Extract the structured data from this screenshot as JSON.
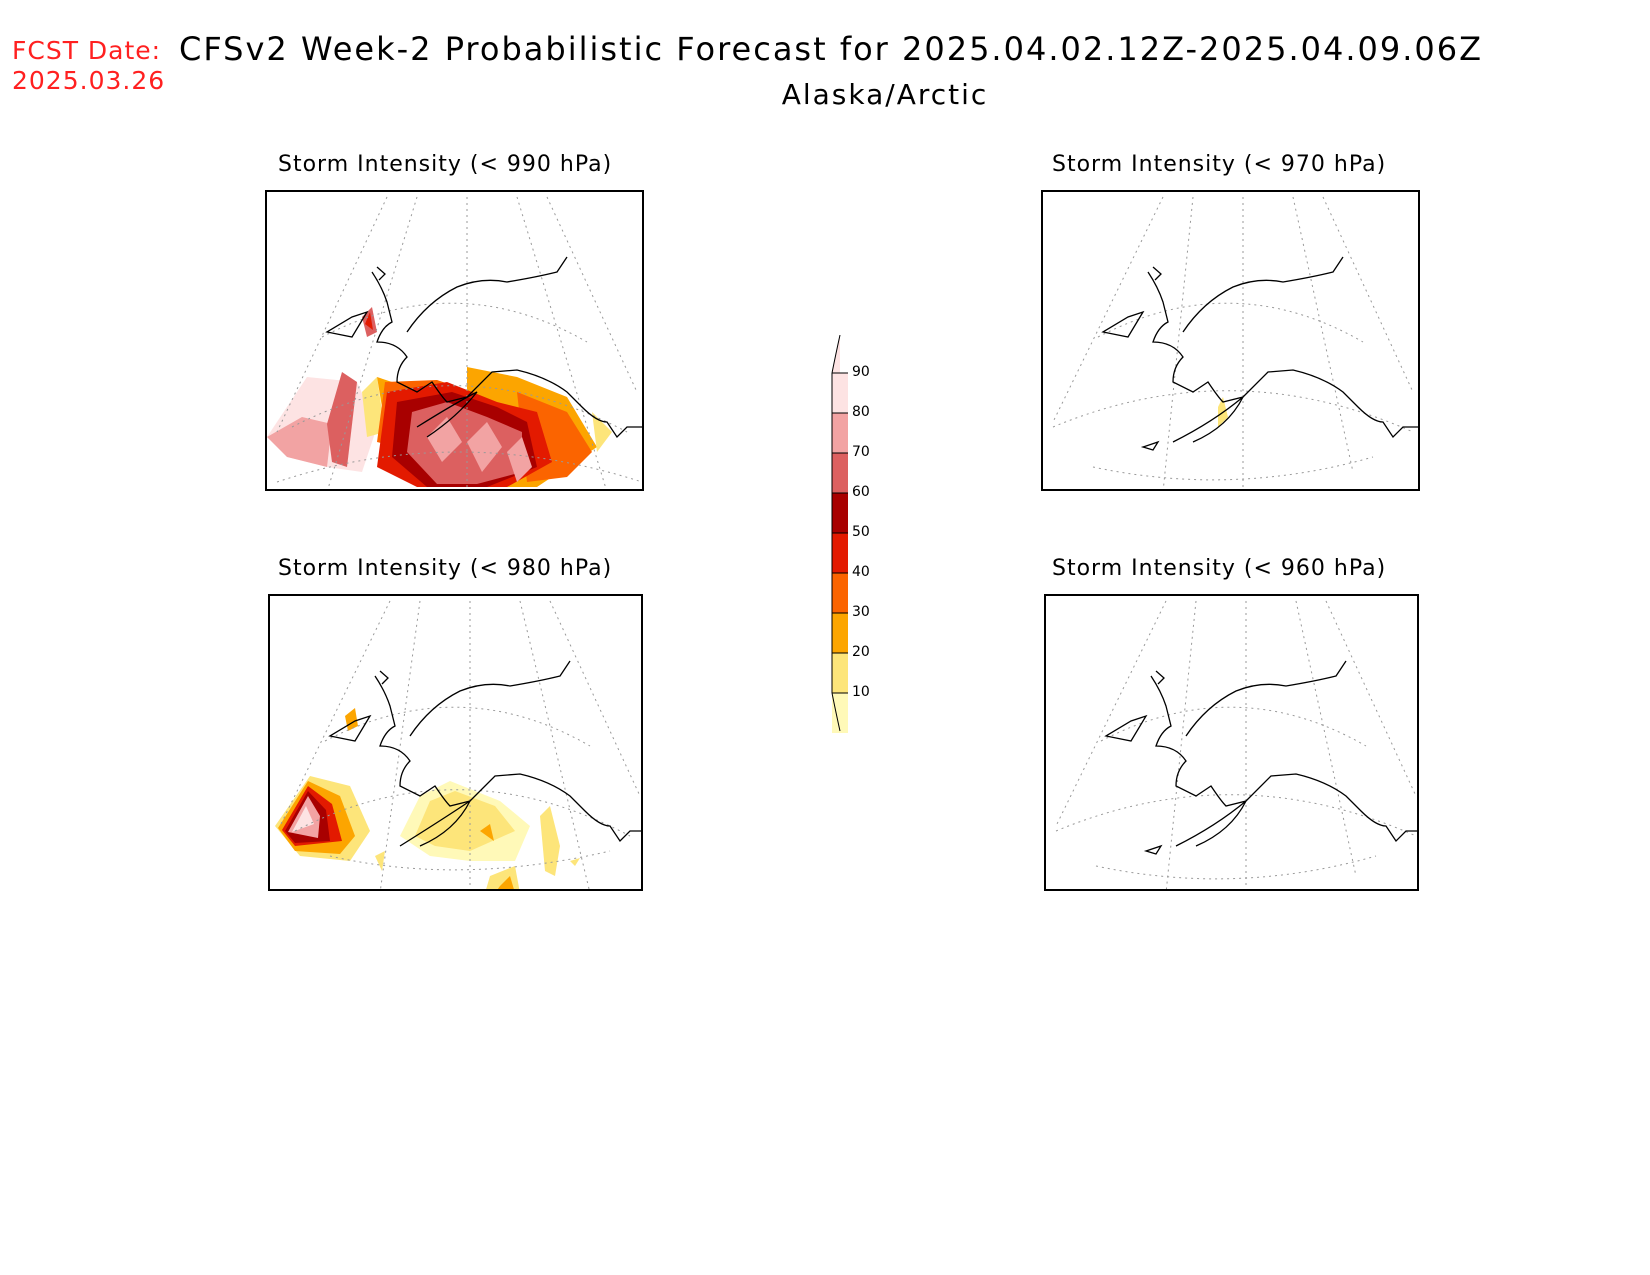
{
  "header": {
    "fcst_label": "FCST Date:",
    "fcst_date": "2025.03.26",
    "title": "CFSv2 Week-2 Probabilistic Forecast for 2025.04.02.12Z-2025.04.09.06Z",
    "subtitle": "Alaska/Arctic"
  },
  "panels": [
    {
      "title": "Storm Intensity (< 990 hPa)",
      "coverage": "high"
    },
    {
      "title": "Storm Intensity (< 970 hPa)",
      "coverage": "trace"
    },
    {
      "title": "Storm Intensity (< 980 hPa)",
      "coverage": "moderate"
    },
    {
      "title": "Storm Intensity (< 960 hPa)",
      "coverage": "none"
    }
  ],
  "colorbar": {
    "levels": [
      "10",
      "20",
      "30",
      "40",
      "50",
      "60",
      "70",
      "80",
      "90"
    ],
    "colors": [
      "#fff9b8",
      "#fde57a",
      "#fca500",
      "#fb6400",
      "#e31a00",
      "#a80000",
      "#dc6060",
      "#f2a3a3",
      "#fde3e3"
    ]
  }
}
